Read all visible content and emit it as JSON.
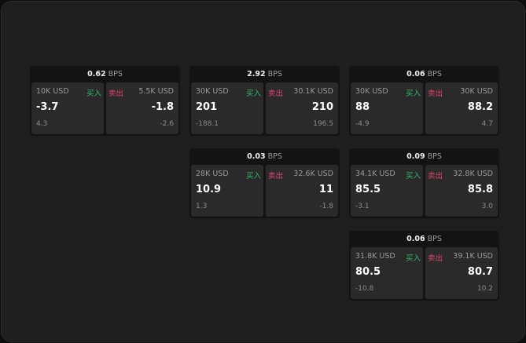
{
  "labels": {
    "buy": "买入",
    "sell": "卖出",
    "unit": "BPS"
  },
  "colors": {
    "buy": "#2ebd6b",
    "sell": "#e0456c"
  },
  "cards": [
    {
      "spread": "0.62",
      "bid_size": "10K USD",
      "bid": "-3.7",
      "bid_chg": "4.3",
      "ask_size": "5.5K USD",
      "ask": "-1.8",
      "ask_chg": "-2.6"
    },
    {
      "spread": "2.92",
      "bid_size": "30K USD",
      "bid": "201",
      "bid_chg": "-188.1",
      "ask_size": "30.1K USD",
      "ask": "210",
      "ask_chg": "196.5"
    },
    {
      "spread": "0.06",
      "bid_size": "30K USD",
      "bid": "88",
      "bid_chg": "-4.9",
      "ask_size": "30K USD",
      "ask": "88.2",
      "ask_chg": "4.7"
    },
    {
      "spread": "0.03",
      "bid_size": "28K USD",
      "bid": "10.9",
      "bid_chg": "1.3",
      "ask_size": "32.6K USD",
      "ask": "11",
      "ask_chg": "-1.8"
    },
    {
      "spread": "0.09",
      "bid_size": "34.1K USD",
      "bid": "85.5",
      "bid_chg": "-3.1",
      "ask_size": "32.8K USD",
      "ask": "85.8",
      "ask_chg": "3.0"
    },
    {
      "spread": "0.06",
      "bid_size": "31.8K USD",
      "bid": "80.5",
      "bid_chg": "-10.8",
      "ask_size": "39.1K USD",
      "ask": "80.7",
      "ask_chg": "10.2"
    }
  ]
}
